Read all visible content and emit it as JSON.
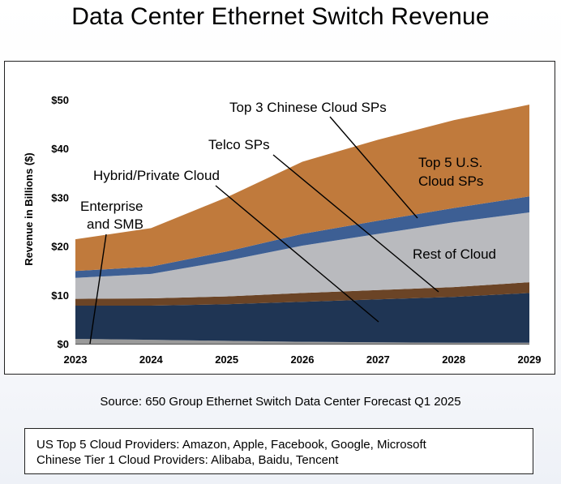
{
  "title": "Data Center Ethernet Switch Revenue",
  "source": "Source: 650 Group Ethernet Switch Data Center Forecast Q1 2025",
  "notes": {
    "line1": "US Top 5 Cloud Providers: Amazon, Apple, Facebook, Google, Microsoft",
    "line2": "Chinese Tier 1 Cloud Providers: Alibaba, Baidu, Tencent"
  },
  "chart_data": {
    "type": "area",
    "stacked": true,
    "ylabel": "Revenue in Billions ($)",
    "ylim": [
      0,
      50
    ],
    "yticks": [
      "$0",
      "$10",
      "$20",
      "$30",
      "$40",
      "$50"
    ],
    "x": [
      "2023",
      "2024",
      "2025",
      "2026",
      "2027",
      "2028",
      "2029"
    ],
    "series": [
      {
        "name": "Enterprise and SMB",
        "color": "#9a9a9a",
        "values": [
          1.0,
          0.8,
          0.6,
          0.4,
          0.3,
          0.2,
          0.2
        ]
      },
      {
        "name": "Hybrid/Private Cloud",
        "color": "#1f3554",
        "values": [
          6.8,
          7.0,
          7.5,
          8.2,
          8.8,
          9.4,
          10.2
        ]
      },
      {
        "name": "Telco SPs",
        "color": "#6b4426",
        "values": [
          1.4,
          1.5,
          1.6,
          1.8,
          1.9,
          2.0,
          2.2
        ]
      },
      {
        "name": "Rest of Cloud",
        "color": "#b9babe",
        "values": [
          4.3,
          5.0,
          7.3,
          9.7,
          11.5,
          13.3,
          14.3
        ]
      },
      {
        "name": "Top 3 Chinese Cloud SPs",
        "color": "#3d5f94",
        "values": [
          1.4,
          1.5,
          1.9,
          2.4,
          2.7,
          2.9,
          3.3
        ]
      },
      {
        "name": "Top 5 U.S. Cloud SPs",
        "color": "#c07a3c",
        "values": [
          6.5,
          7.9,
          11.1,
          14.8,
          16.6,
          18.0,
          18.8
        ]
      }
    ],
    "labels": {
      "top3_chinese": "Top 3 Chinese Cloud SPs",
      "telco": "Telco SPs",
      "hybrid": "Hybrid/Private Cloud",
      "enterprise_line1": "Enterprise",
      "enterprise_line2": "and SMB",
      "top5_us_line1": "Top 5 U.S.",
      "top5_us_line2": "Cloud SPs",
      "rest_of_cloud": "Rest of Cloud"
    }
  }
}
